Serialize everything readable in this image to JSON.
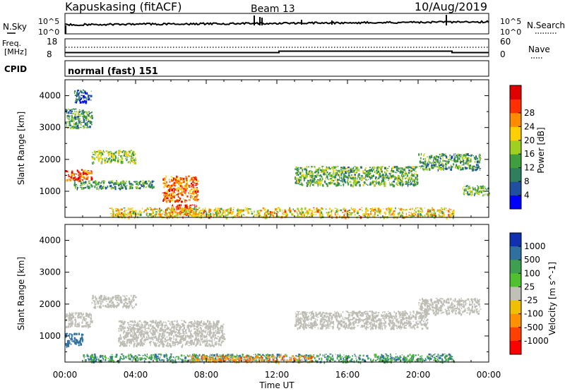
{
  "header": {
    "station": "Kapuskasing (fitACF)",
    "beam": "Beam 13",
    "date": "10/Aug/2019"
  },
  "nsky_panel": {
    "left_label": "N.Sky",
    "right_label": "N.Search",
    "left_ticks": [
      "10^5",
      "10^0"
    ],
    "right_ticks": [
      "10^5",
      "10^0"
    ]
  },
  "freq_panel": {
    "left_label_1": "Freq.",
    "left_label_2": "[MHz]",
    "right_label": "Nave",
    "left_ticks": [
      "18",
      "8"
    ],
    "right_ticks": [
      "60",
      "0"
    ]
  },
  "cpid": {
    "label": "CPID",
    "value": "normal (fast) 151"
  },
  "colors": {
    "power_scale": [
      "#0000ff",
      "#1f4f9f",
      "#2f7f5f",
      "#3f9f3f",
      "#9fcf1f",
      "#ffd000",
      "#ff8c00",
      "#ff3000",
      "#e00000"
    ],
    "velocity_scale": [
      "#1030b0",
      "#2f70a0",
      "#3f9f50",
      "#50c030",
      "#c0c0b8",
      "#f0c000",
      "#ff9000",
      "#ff4000",
      "#ff0000"
    ],
    "ground_scatter": "#bdbdb5"
  },
  "chart_data": [
    {
      "type": "heatmap",
      "panel": "power",
      "ylabel": "Slant Range [km]",
      "xlabel": "",
      "ylim": [
        180,
        4500
      ],
      "xlim": [
        0,
        24
      ],
      "yticks": [
        "1000",
        "2000",
        "3000",
        "4000"
      ],
      "xticks": [
        "00:00",
        "04:00",
        "08:00",
        "12:00",
        "16:00",
        "20:00",
        "00:00"
      ],
      "colorbar": {
        "label": "Power [dB]",
        "ticks": [
          "4",
          "8",
          "12",
          "16",
          "20",
          "24",
          "28"
        ],
        "range": [
          0,
          30
        ]
      },
      "regions": [
        {
          "t0": 0.0,
          "t1": 1.5,
          "r0": 1350,
          "r1": 1700,
          "value": 25
        },
        {
          "t0": 1.5,
          "t1": 4.0,
          "r0": 1900,
          "r1": 2300,
          "value": 14
        },
        {
          "t0": 0.5,
          "t1": 5.0,
          "r0": 1100,
          "r1": 1350,
          "value": 10
        },
        {
          "t0": 5.5,
          "t1": 7.5,
          "r0": 700,
          "r1": 1500,
          "value": 23
        },
        {
          "t0": 6.0,
          "t1": 7.5,
          "r0": 300,
          "r1": 600,
          "value": 26
        },
        {
          "t0": 2.5,
          "t1": 22.0,
          "r0": 200,
          "r1": 500,
          "value": 18
        },
        {
          "t0": 13.0,
          "t1": 20.0,
          "r0": 1200,
          "r1": 1800,
          "value": 12
        },
        {
          "t0": 20.0,
          "t1": 23.5,
          "r0": 1700,
          "r1": 2200,
          "value": 11
        },
        {
          "t0": 22.5,
          "t1": 24.0,
          "r0": 900,
          "r1": 1200,
          "value": 12
        },
        {
          "t0": 0.0,
          "t1": 1.5,
          "r0": 3000,
          "r1": 3600,
          "value": 10
        },
        {
          "t0": 0.5,
          "t1": 1.5,
          "r0": 3800,
          "r1": 4200,
          "value": 6
        }
      ]
    },
    {
      "type": "heatmap",
      "panel": "velocity",
      "ylabel": "Slant Range [km]",
      "xlabel": "Time UT",
      "ylim": [
        180,
        4500
      ],
      "xlim": [
        0,
        24
      ],
      "yticks": [
        "1000",
        "2000",
        "3000",
        "4000"
      ],
      "xticks": [
        "00:00",
        "04:00",
        "08:00",
        "12:00",
        "16:00",
        "20:00",
        "00:00"
      ],
      "colorbar": {
        "label": "Velocity [m s^-1]",
        "ticks": [
          "1000",
          "500",
          "100",
          "25",
          "-25",
          "-100",
          "-500",
          "-1000"
        ]
      },
      "regions": [
        {
          "t0": 0.0,
          "t1": 1.5,
          "r0": 1300,
          "r1": 1750,
          "value": 0
        },
        {
          "t0": 1.5,
          "t1": 4.0,
          "r0": 1900,
          "r1": 2300,
          "value": 0
        },
        {
          "t0": 3.0,
          "t1": 9.0,
          "r0": 700,
          "r1": 1500,
          "value": 0
        },
        {
          "t0": 13.0,
          "t1": 20.5,
          "r0": 1250,
          "r1": 1800,
          "value": 0
        },
        {
          "t0": 20.0,
          "t1": 23.5,
          "r0": 1700,
          "r1": 2200,
          "value": 0
        },
        {
          "t0": 1.0,
          "t1": 22.0,
          "r0": 200,
          "r1": 450,
          "value": 80
        },
        {
          "t0": 7.0,
          "t1": 14.0,
          "r0": 200,
          "r1": 400,
          "value": -60
        },
        {
          "t0": 0.0,
          "t1": 1.0,
          "r0": 700,
          "r1": 1100,
          "value": 200
        }
      ]
    }
  ]
}
